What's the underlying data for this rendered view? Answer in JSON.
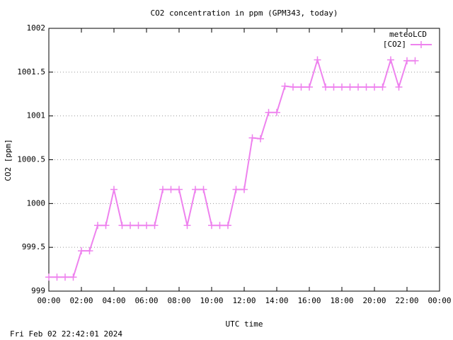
{
  "chart_data": {
    "type": "line",
    "title": "CO2 concentration in ppm (GPM343, today)",
    "xlabel": "UTC time",
    "ylabel": "CO2 [ppm]",
    "footer": "Fri Feb 02 22:42:01 2024",
    "legend_title": "meteoLCD",
    "legend": "top-right",
    "grid": true,
    "xlim": [
      0,
      24
    ],
    "xticks": [
      {
        "value": 0,
        "label": "00:00"
      },
      {
        "value": 2,
        "label": "02:00"
      },
      {
        "value": 4,
        "label": "04:00"
      },
      {
        "value": 6,
        "label": "06:00"
      },
      {
        "value": 8,
        "label": "08:00"
      },
      {
        "value": 10,
        "label": "10:00"
      },
      {
        "value": 12,
        "label": "12:00"
      },
      {
        "value": 14,
        "label": "14:00"
      },
      {
        "value": 16,
        "label": "16:00"
      },
      {
        "value": 18,
        "label": "18:00"
      },
      {
        "value": 20,
        "label": "20:00"
      },
      {
        "value": 22,
        "label": "22:00"
      },
      {
        "value": 24,
        "label": "00:00"
      }
    ],
    "ylim": [
      999,
      1002
    ],
    "yticks": [
      999,
      999.5,
      1000,
      1000.5,
      1001,
      1001.5,
      1002
    ],
    "x": [
      0,
      0.5,
      1,
      1.5,
      2,
      2.5,
      3,
      3.5,
      4,
      4.5,
      5,
      5.5,
      6,
      6.5,
      7,
      7.5,
      8,
      8.5,
      9,
      9.5,
      10,
      10.5,
      11,
      11.5,
      12,
      12.5,
      13,
      13.5,
      14,
      14.5,
      15,
      15.5,
      16,
      16.5,
      17,
      17.5,
      18,
      18.5,
      19,
      19.5,
      20,
      20.5,
      21,
      21.5,
      22,
      22.5
    ],
    "series": [
      {
        "name": "[CO2]",
        "color": "#ee82ee",
        "values": [
          999.16,
          999.16,
          999.16,
          999.16,
          999.46,
          999.46,
          999.75,
          999.75,
          1000.16,
          999.75,
          999.75,
          999.75,
          999.75,
          999.75,
          1000.16,
          1000.16,
          1000.16,
          999.75,
          1000.16,
          1000.16,
          999.75,
          999.75,
          999.75,
          1000.16,
          1000.16,
          1000.75,
          1000.74,
          1001.04,
          1001.04,
          1001.34,
          1001.33,
          1001.33,
          1001.33,
          1001.64,
          1001.33,
          1001.33,
          1001.33,
          1001.33,
          1001.33,
          1001.33,
          1001.33,
          1001.33,
          1001.64,
          1001.33,
          1001.63,
          1001.63
        ]
      }
    ]
  }
}
